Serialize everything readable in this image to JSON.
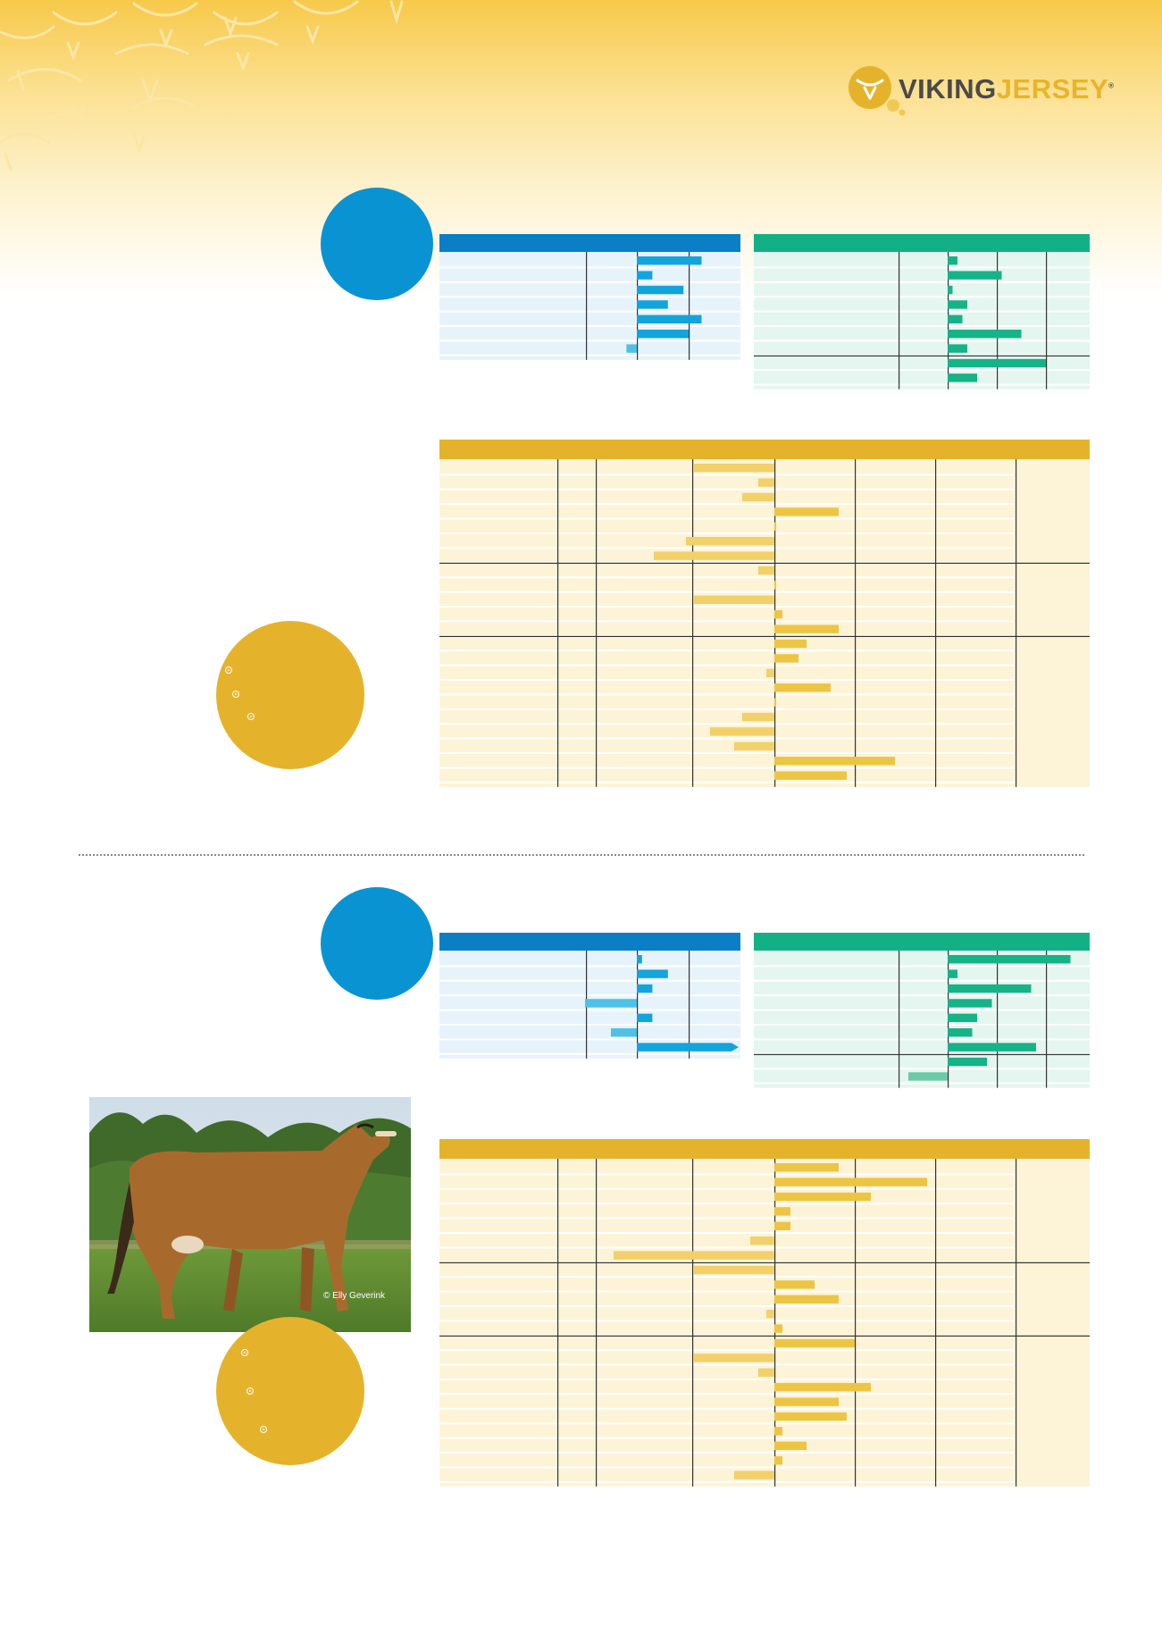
{
  "brand": {
    "name_part1": "VIKING",
    "name_part2": "JERSEY",
    "registered_mark": "®",
    "colors": {
      "gold": "#e5b32b",
      "blue": "#0a93d2",
      "dark_blue": "#0b7fc6",
      "green": "#14b085",
      "text_gray": "#4a4a4a"
    },
    "icon": "bull-head-logo-icon"
  },
  "photo": {
    "credit": "© Elly Geverink"
  },
  "chart_data": [
    {
      "type": "bar",
      "values": [
        2.5,
        0.6,
        1.8,
        1.2,
        2.5,
        2.0,
        -0.4
      ],
      "xlim": [
        -2,
        4
      ]
    },
    {
      "type": "bar",
      "values": [
        0.4,
        2.2,
        0.2,
        0.8,
        0.6,
        3.0,
        0.8,
        4.0,
        1.2
      ],
      "xlim": [
        -2,
        6
      ]
    },
    {
      "type": "bar",
      "values": [
        -10,
        -2,
        -4,
        8,
        0,
        -11,
        -15,
        -2,
        0,
        -10,
        1,
        8,
        4,
        3,
        -1,
        7,
        0,
        -4,
        -8,
        -5,
        15,
        9
      ],
      "xlim": [
        -20,
        20
      ]
    },
    {
      "type": "bar",
      "values": [
        0.2,
        1.2,
        0.6,
        -2.0,
        0.6,
        -1.0,
        4.0
      ],
      "xlim": [
        -2,
        4
      ]
    },
    {
      "type": "bar",
      "values": [
        5.0,
        0.4,
        3.4,
        1.8,
        1.2,
        1.0,
        3.6,
        1.6,
        -1.6
      ],
      "xlim": [
        -2,
        6
      ]
    },
    {
      "type": "bar",
      "values": [
        8,
        19,
        12,
        2,
        2,
        -3,
        -20,
        -10,
        5,
        8,
        -1,
        1,
        10,
        -10,
        -2,
        12,
        8,
        9,
        1,
        4,
        1,
        -5
      ],
      "xlim": [
        -20,
        20
      ]
    }
  ],
  "icons": [
    "arrow-bullet-icon"
  ]
}
